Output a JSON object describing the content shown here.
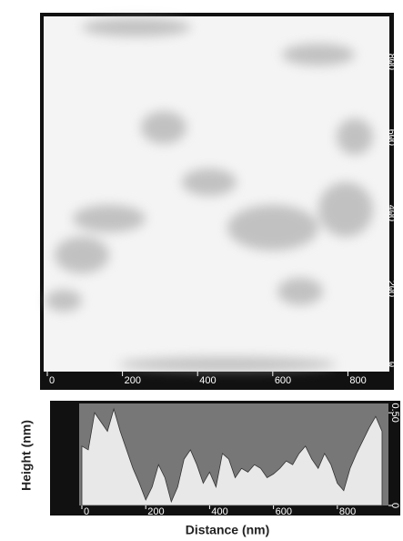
{
  "chart_data": [
    {
      "type": "image",
      "xlim": [
        0,
        920
      ],
      "ylim": [
        0,
        920
      ],
      "xticks": [
        0,
        200,
        400,
        600,
        800
      ],
      "yticks": [
        0,
        200,
        400,
        600,
        800
      ]
    },
    {
      "type": "area",
      "xlabel": "Distance (nm)",
      "ylabel": "Height (nm)",
      "color": "#e8e8e8",
      "x": [
        0,
        20,
        40,
        60,
        80,
        100,
        120,
        140,
        160,
        180,
        200,
        220,
        240,
        260,
        280,
        300,
        320,
        340,
        360,
        380,
        400,
        420,
        440,
        460,
        480,
        500,
        520,
        540,
        560,
        580,
        600,
        620,
        640,
        660,
        680,
        700,
        720,
        740,
        760,
        780,
        800,
        820,
        840,
        860,
        880,
        900,
        920,
        940
      ],
      "values": [
        0.32,
        0.3,
        0.5,
        0.45,
        0.4,
        0.52,
        0.4,
        0.3,
        0.2,
        0.12,
        0.03,
        0.1,
        0.22,
        0.15,
        0.02,
        0.1,
        0.25,
        0.3,
        0.22,
        0.12,
        0.18,
        0.1,
        0.28,
        0.25,
        0.15,
        0.2,
        0.18,
        0.22,
        0.2,
        0.15,
        0.17,
        0.2,
        0.24,
        0.22,
        0.28,
        0.32,
        0.25,
        0.2,
        0.28,
        0.22,
        0.12,
        0.08,
        0.2,
        0.28,
        0.35,
        0.42,
        0.48,
        0.4
      ],
      "xlim": [
        0,
        960
      ],
      "ylim": [
        0,
        0.55
      ],
      "xticks": [
        0,
        200,
        400,
        600,
        800
      ],
      "yticks": [
        0,
        {
          "value": 0.5,
          "label": "0.50"
        }
      ]
    }
  ]
}
